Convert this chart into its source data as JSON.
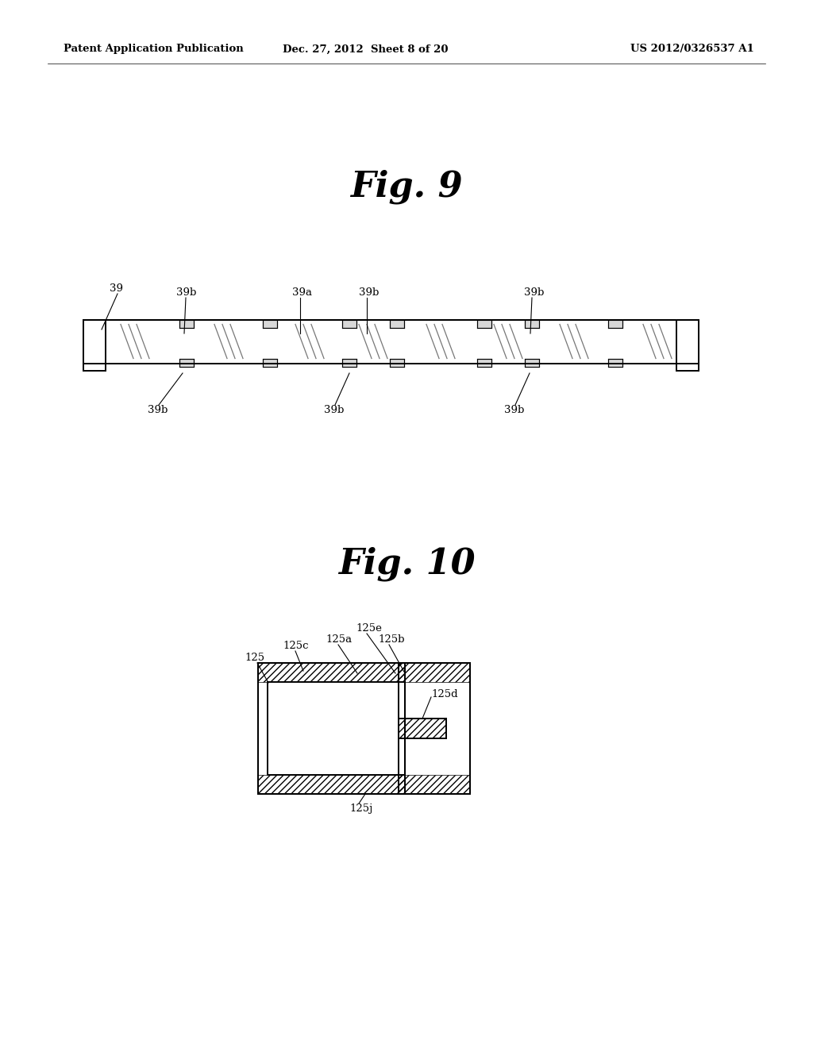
{
  "background_color": "#ffffff",
  "header_left": "Patent Application Publication",
  "header_center": "Dec. 27, 2012  Sheet 8 of 20",
  "header_right": "US 2012/0326537 A1",
  "fig9_title": "Fig. 9",
  "fig10_title": "Fig. 10"
}
